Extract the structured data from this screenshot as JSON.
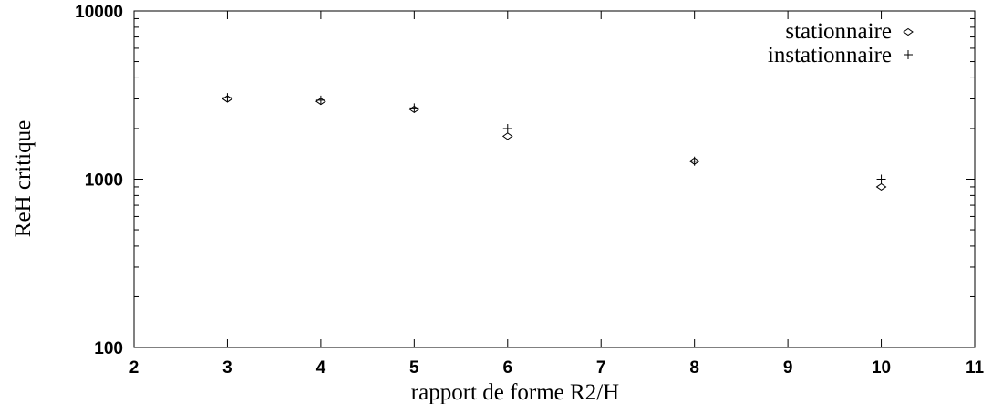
{
  "chart_data": {
    "type": "scatter",
    "title": "",
    "xlabel": "rapport de forme R2/H",
    "ylabel": "ReH critique",
    "x_scale": "linear",
    "y_scale": "log",
    "xlim": [
      2,
      11
    ],
    "ylim": [
      100,
      10000
    ],
    "x_ticks": [
      2,
      3,
      4,
      5,
      6,
      7,
      8,
      9,
      10,
      11
    ],
    "y_ticks": [
      100,
      1000,
      10000
    ],
    "x_tick_labels": [
      "2",
      "3",
      "4",
      "5",
      "6",
      "7",
      "8",
      "9",
      "10",
      "11"
    ],
    "y_tick_labels": [
      "100",
      "1000",
      "10000"
    ],
    "grid": false,
    "legend_position": "top-right",
    "series": [
      {
        "name": "stationnaire",
        "marker": "diamond",
        "x": [
          3,
          4,
          5,
          6,
          8,
          10
        ],
        "y": [
          3000,
          2900,
          2600,
          1800,
          1280,
          900
        ]
      },
      {
        "name": "instationnaire",
        "marker": "plus",
        "x": [
          3,
          4,
          5,
          6,
          8,
          10
        ],
        "y": [
          3050,
          2950,
          2650,
          2000,
          1280,
          1000
        ]
      }
    ]
  }
}
